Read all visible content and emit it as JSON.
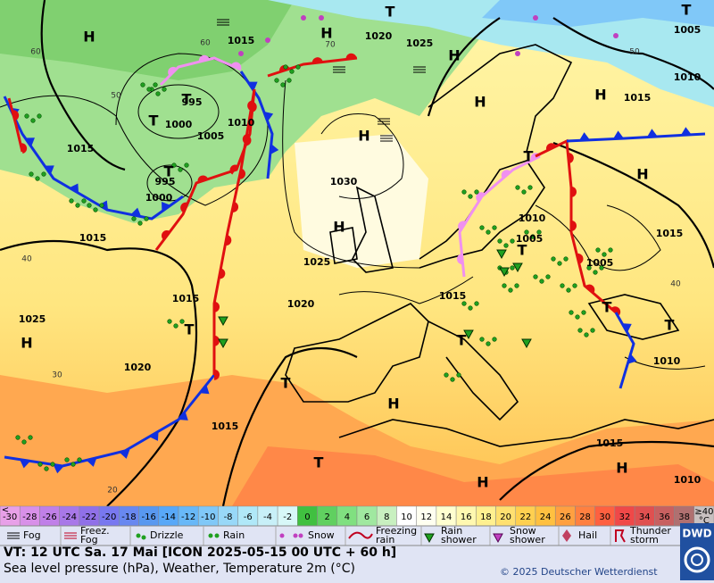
{
  "map": {
    "pressure_labels": [
      "1015",
      "1000",
      "995",
      "1005",
      "1010",
      "995",
      "1000",
      "1015",
      "1015",
      "1025",
      "1020",
      "1015",
      "1030",
      "1025",
      "1020",
      "1015",
      "1010",
      "1005",
      "1005",
      "1015",
      "1010",
      "1015",
      "1010",
      "1010",
      "1015",
      "1005",
      "1025",
      "1020",
      "1015"
    ],
    "temperature_labels": [
      "60",
      "60",
      "50",
      "40",
      "30",
      "20",
      "70",
      "50",
      "40"
    ],
    "centers": [
      "H",
      "T",
      "T",
      "H",
      "H",
      "H",
      "H",
      "H",
      "T",
      "T",
      "H",
      "H",
      "T",
      "T",
      "T",
      "H",
      "T",
      "T",
      "T",
      "T",
      "H",
      "T",
      "H",
      "H",
      "T"
    ]
  },
  "color_scale": {
    "low_prefix": "<",
    "high_label": "≥40",
    "unit": "°C",
    "high_color": "#c8c0c0",
    "entries": [
      {
        "value": -30,
        "color": "#e8a0e8"
      },
      {
        "value": -28,
        "color": "#d890e8"
      },
      {
        "value": -26,
        "color": "#c080e8"
      },
      {
        "value": -24,
        "color": "#a878e8"
      },
      {
        "value": -22,
        "color": "#9070e8"
      },
      {
        "value": -20,
        "color": "#7878f0"
      },
      {
        "value": -18,
        "color": "#6888f0"
      },
      {
        "value": -16,
        "color": "#5898f0"
      },
      {
        "value": -14,
        "color": "#58a8f8"
      },
      {
        "value": -12,
        "color": "#68b8f8"
      },
      {
        "value": -10,
        "color": "#80c8f8"
      },
      {
        "value": -8,
        "color": "#98d8f8"
      },
      {
        "value": -6,
        "color": "#b0e8f8"
      },
      {
        "value": -4,
        "color": "#c8f0f8"
      },
      {
        "value": -2,
        "color": "#d8f8f8"
      },
      {
        "value": 0,
        "color": "#40c040"
      },
      {
        "value": 2,
        "color": "#60d060"
      },
      {
        "value": 4,
        "color": "#80e080"
      },
      {
        "value": 6,
        "color": "#a0e8a0"
      },
      {
        "value": 8,
        "color": "#c8f0c0"
      },
      {
        "value": 10,
        "color": "#ffffff"
      },
      {
        "value": 12,
        "color": "#fffff0"
      },
      {
        "value": 14,
        "color": "#ffffd0"
      },
      {
        "value": 16,
        "color": "#fff8b0"
      },
      {
        "value": 18,
        "color": "#fff090"
      },
      {
        "value": 20,
        "color": "#ffe070"
      },
      {
        "value": 22,
        "color": "#ffd050"
      },
      {
        "value": 24,
        "color": "#ffc040"
      },
      {
        "value": 26,
        "color": "#ffa040"
      },
      {
        "value": 28,
        "color": "#ff8040"
      },
      {
        "value": 30,
        "color": "#ff6040"
      },
      {
        "value": 32,
        "color": "#f04848"
      },
      {
        "value": 34,
        "color": "#e05050"
      },
      {
        "value": 36,
        "color": "#c86060"
      },
      {
        "value": 38,
        "color": "#b07070"
      }
    ]
  },
  "legend": [
    [
      "Fog"
    ],
    [
      "Freez.",
      "Fog"
    ],
    [
      "Drizzle"
    ],
    [
      "Rain"
    ],
    [
      "Snow"
    ],
    [
      "Freezing",
      "rain"
    ],
    [
      "Rain",
      "shower"
    ],
    [
      "Snow",
      "shower"
    ],
    [
      "Hail"
    ],
    [
      "Thunder",
      "storm"
    ]
  ],
  "footer": {
    "valid_time": "VT: 12 UTC Sa.  17 Mai [ICON 2025-05-15  00 UTC + 60 h]",
    "description": "Sea level pressure (hPa), Weather, Temperature 2m (°C)",
    "copyright": "© 2025 Deutscher Wetterdienst",
    "logo": "DWD"
  }
}
